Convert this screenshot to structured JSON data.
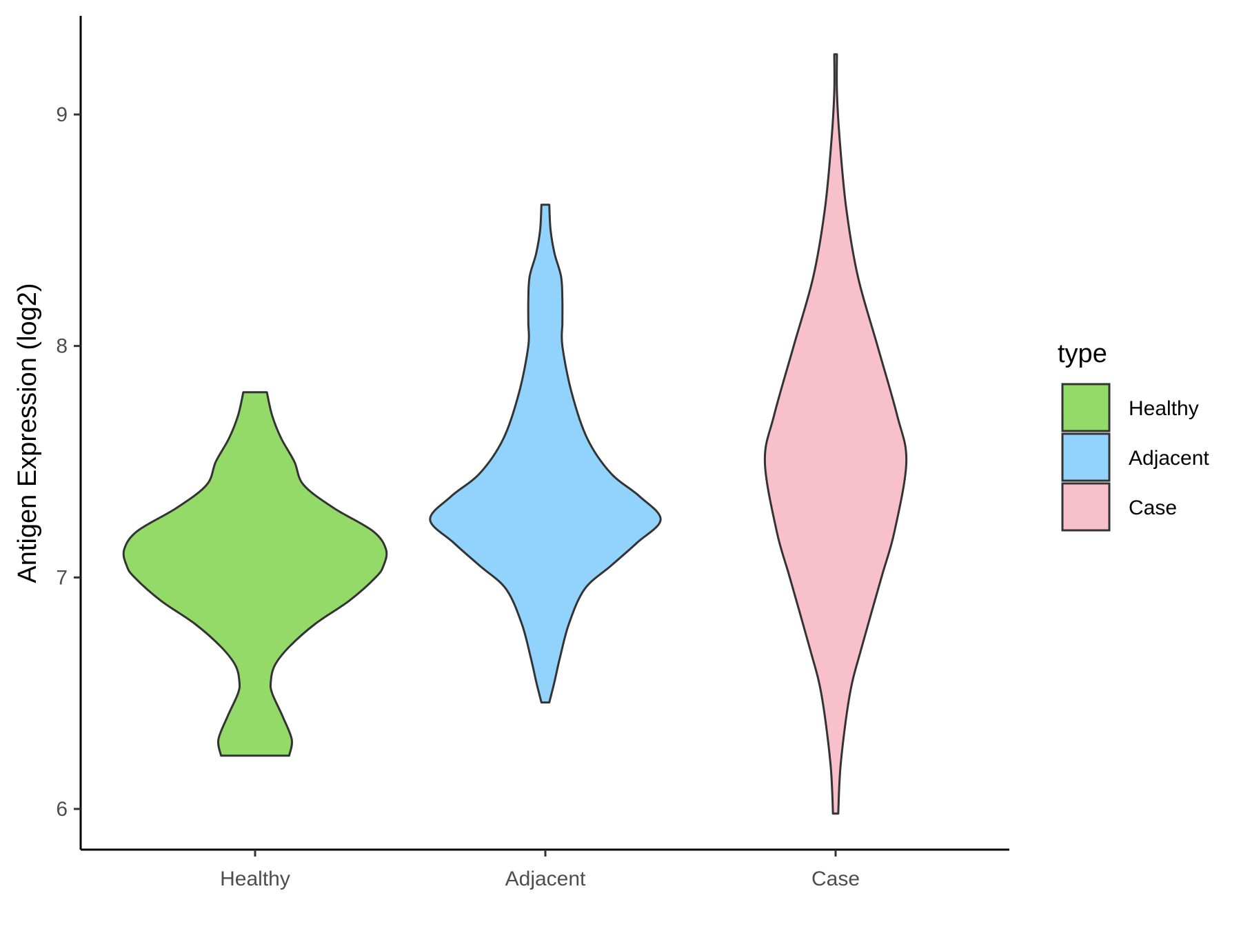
{
  "chart_data": {
    "type": "violin",
    "title": "",
    "xlabel": "",
    "ylabel": "Antigen Expression (log2)",
    "ylim": [
      5.81,
      9.57
    ],
    "yticks": [
      6,
      7,
      8,
      9
    ],
    "ytick_labels": [
      "6",
      "7",
      "8",
      "9"
    ],
    "categories": [
      "Healthy",
      "Adjacent",
      "Case"
    ],
    "legend": {
      "title": "type",
      "position": "right",
      "entries": [
        "Healthy",
        "Adjacent",
        "Case"
      ]
    },
    "grid": false,
    "series": [
      {
        "name": "Healthy",
        "color": "#93DA69",
        "min": 6.23,
        "max": 7.8,
        "density": [
          [
            6.23,
            0.26
          ],
          [
            6.3,
            0.28
          ],
          [
            6.4,
            0.21
          ],
          [
            6.5,
            0.13
          ],
          [
            6.55,
            0.12
          ],
          [
            6.62,
            0.15
          ],
          [
            6.7,
            0.26
          ],
          [
            6.8,
            0.46
          ],
          [
            6.9,
            0.72
          ],
          [
            7.0,
            0.92
          ],
          [
            7.05,
            0.98
          ],
          [
            7.12,
            1.0
          ],
          [
            7.2,
            0.9
          ],
          [
            7.3,
            0.6
          ],
          [
            7.4,
            0.37
          ],
          [
            7.5,
            0.3
          ],
          [
            7.6,
            0.2
          ],
          [
            7.7,
            0.13
          ],
          [
            7.8,
            0.09
          ]
        ]
      },
      {
        "name": "Adjacent",
        "color": "#92D3FE",
        "min": 6.46,
        "max": 8.61,
        "density": [
          [
            6.46,
            0.03
          ],
          [
            6.55,
            0.07
          ],
          [
            6.65,
            0.11
          ],
          [
            6.8,
            0.18
          ],
          [
            6.95,
            0.3
          ],
          [
            7.05,
            0.5
          ],
          [
            7.15,
            0.7
          ],
          [
            7.25,
            0.88
          ],
          [
            7.35,
            0.72
          ],
          [
            7.45,
            0.5
          ],
          [
            7.6,
            0.32
          ],
          [
            7.8,
            0.2
          ],
          [
            8.0,
            0.13
          ],
          [
            8.1,
            0.13
          ],
          [
            8.2,
            0.13
          ],
          [
            8.3,
            0.12
          ],
          [
            8.4,
            0.07
          ],
          [
            8.5,
            0.04
          ],
          [
            8.61,
            0.03
          ]
        ]
      },
      {
        "name": "Case",
        "color": "#F7C0CB",
        "min": 5.98,
        "max": 9.26,
        "density": [
          [
            5.98,
            0.02
          ],
          [
            6.2,
            0.04
          ],
          [
            6.5,
            0.11
          ],
          [
            6.7,
            0.2
          ],
          [
            7.0,
            0.35
          ],
          [
            7.2,
            0.45
          ],
          [
            7.5,
            0.54
          ],
          [
            7.7,
            0.47
          ],
          [
            8.0,
            0.32
          ],
          [
            8.3,
            0.17
          ],
          [
            8.6,
            0.08
          ],
          [
            8.9,
            0.03
          ],
          [
            9.1,
            0.01
          ],
          [
            9.26,
            0.01
          ]
        ]
      }
    ]
  }
}
